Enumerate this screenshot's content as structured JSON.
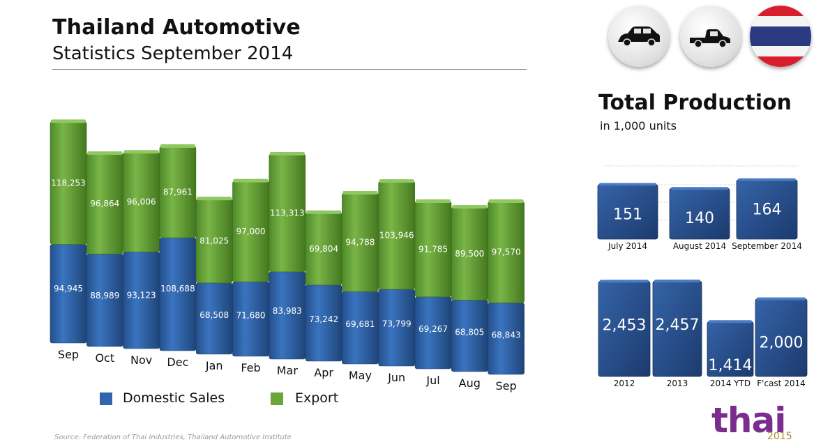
{
  "header": {
    "title": "Thailand Automotive",
    "subtitle": "Statistics September 2014"
  },
  "colors": {
    "domestic": "#2f66ad",
    "export": "#6aa63a",
    "production": "#2a4f8e"
  },
  "icons": [
    "car-icon",
    "pickup-truck-icon",
    "thailand-flag-icon"
  ],
  "legend": {
    "domestic_label": "Domestic Sales",
    "export_label": "Export"
  },
  "total_production": {
    "title": "Total Production",
    "subtitle": "in 1,000 units"
  },
  "footer": {
    "source": "Source: Federation of Thai Industries, Thailand Automotive Institute",
    "logo": "thai",
    "logo_year": "2015"
  },
  "chart_data": [
    {
      "type": "bar",
      "stacked": true,
      "categories": [
        "Sep",
        "Oct",
        "Nov",
        "Dec",
        "Jan",
        "Feb",
        "Mar",
        "Apr",
        "May",
        "Jun",
        "Jul",
        "Aug",
        "Sep"
      ],
      "series": [
        {
          "name": "Domestic Sales",
          "values": [
            94945,
            88989,
            93123,
            108688,
            68508,
            71680,
            83983,
            73242,
            69681,
            73799,
            69267,
            68805,
            68843
          ],
          "labels": [
            "94,945",
            "88,989",
            "93,123",
            "108,688",
            "68,508",
            "71,680",
            "83,983",
            "73,242",
            "69,681",
            "73,799",
            "69,267",
            "68,805",
            "68,843"
          ]
        },
        {
          "name": "Export",
          "values": [
            118253,
            96864,
            96006,
            87961,
            81025,
            97000,
            113313,
            69804,
            94788,
            103946,
            91785,
            89500,
            97570
          ],
          "labels": [
            "118,253",
            "96,864",
            "96,006",
            "87,961",
            "81,025",
            "97,000",
            "113,313",
            "69,804",
            "94,788",
            "103,946",
            "91,785",
            "89,500",
            "97,570"
          ]
        }
      ],
      "legend": "bottom",
      "grid": false
    },
    {
      "type": "bar",
      "categories": [
        "July 2014",
        "August 2014",
        "September 2014"
      ],
      "values": [
        151,
        140,
        164
      ],
      "labels": [
        "151",
        "140",
        "164"
      ],
      "grid": true
    },
    {
      "type": "bar",
      "categories": [
        "2012",
        "2013",
        "2014 YTD",
        "F'cast 2014"
      ],
      "values": [
        2453,
        2457,
        1414,
        2000
      ],
      "labels": [
        "2,453",
        "2,457",
        "1,414",
        "2,000"
      ],
      "grid": false
    }
  ]
}
